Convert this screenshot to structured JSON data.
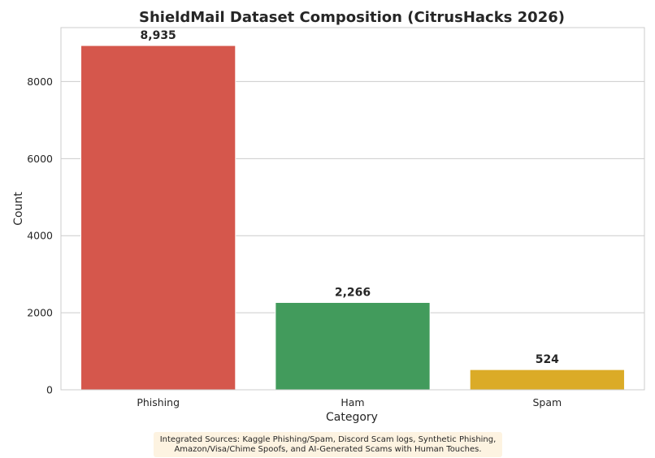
{
  "chart_data": {
    "type": "bar",
    "title": "ShieldMail Dataset Composition (CitrusHacks 2026)",
    "xlabel": "Category",
    "ylabel": "Count",
    "categories": [
      "Phishing",
      "Ham",
      "Spam"
    ],
    "values": [
      8935,
      2266,
      524
    ],
    "value_labels": [
      "8,935",
      "2,266",
      "524"
    ],
    "colors": [
      "#d5574c",
      "#429b5c",
      "#dbab27"
    ],
    "ylim": [
      0,
      9400
    ],
    "yticks": [
      0,
      2000,
      4000,
      6000,
      8000
    ],
    "ytick_labels": [
      "0",
      "2000",
      "4000",
      "6000",
      "8000"
    ],
    "grid": "horizontal",
    "legend": "none"
  },
  "footnote": {
    "line1": "Integrated Sources: Kaggle Phishing/Spam, Discord Scam logs, Synthetic Phishing,",
    "line2": "Amazon/Visa/Chime Spoofs, and AI-Generated Scams with Human Touches."
  }
}
